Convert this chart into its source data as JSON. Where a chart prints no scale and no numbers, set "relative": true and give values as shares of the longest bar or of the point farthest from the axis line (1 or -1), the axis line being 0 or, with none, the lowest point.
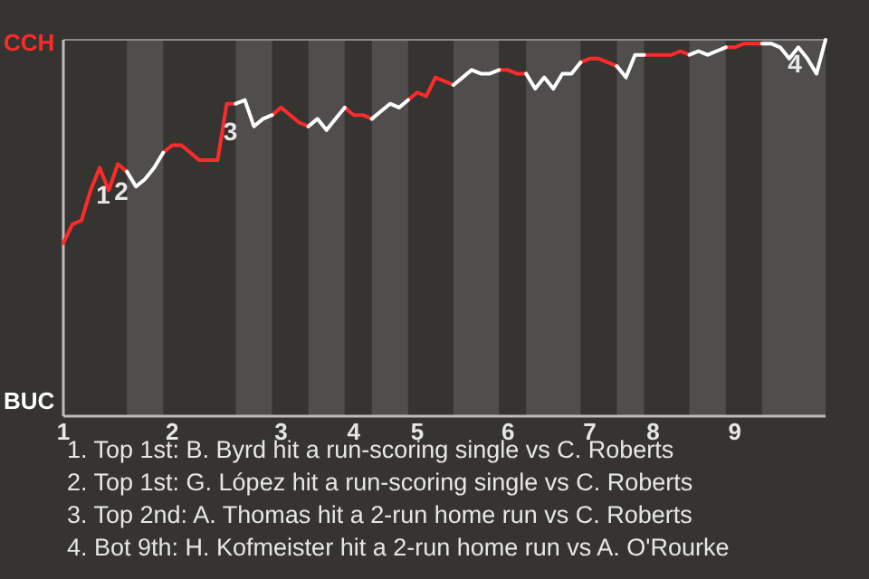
{
  "chart_data": {
    "type": "line",
    "relative": true,
    "categories": [
      "1",
      null,
      null,
      null,
      null,
      null,
      null,
      null,
      null,
      null,
      null,
      null,
      "2",
      null,
      null,
      null,
      null,
      null,
      null,
      null,
      null,
      null,
      null,
      null,
      "3",
      null,
      null,
      null,
      null,
      null,
      null,
      null,
      "4",
      null,
      null,
      null,
      null,
      null,
      null,
      "5",
      null,
      null,
      null,
      null,
      null,
      null,
      null,
      null,
      null,
      "6",
      null,
      null,
      null,
      null,
      null,
      null,
      null,
      null,
      "7",
      null,
      null,
      null,
      null,
      null,
      null,
      "8",
      null,
      null,
      null,
      null,
      null,
      null,
      null,
      null,
      "9",
      null,
      null,
      null,
      null,
      null,
      null,
      null,
      null,
      null,
      null
    ],
    "series": [
      {
        "color": "#ff2a2a",
        "values": [
          0.46,
          0.51,
          0.52,
          0.6,
          0.66,
          0.6,
          0.67,
          0.65,
          null,
          null,
          null,
          0.7,
          0.72,
          0.72,
          0.7,
          0.68,
          0.68,
          0.68,
          0.83,
          0.83,
          null,
          null,
          null,
          0.8,
          0.82,
          0.8,
          0.78,
          0.77,
          null,
          null,
          null,
          0.82,
          0.8,
          0.8,
          0.79,
          null,
          null,
          null,
          0.84,
          0.86,
          0.85,
          0.9,
          0.89,
          0.88,
          null,
          null,
          null,
          null,
          0.92,
          0.92,
          0.91,
          0.91,
          null,
          null,
          null,
          null,
          null,
          0.94,
          0.95,
          0.95,
          0.94,
          0.93,
          null,
          null,
          0.96,
          0.96,
          0.96,
          0.96,
          0.97,
          0.96,
          null,
          null,
          null,
          0.98,
          0.98,
          0.99,
          0.99,
          0.99,
          null,
          null,
          null,
          null,
          null,
          null,
          null
        ]
      },
      {
        "color": "#ffffff",
        "values": [
          null,
          null,
          null,
          null,
          null,
          null,
          null,
          0.65,
          0.61,
          0.63,
          0.66,
          0.7,
          null,
          null,
          null,
          null,
          null,
          null,
          null,
          0.83,
          0.84,
          0.77,
          0.79,
          0.8,
          null,
          null,
          null,
          0.77,
          0.79,
          0.76,
          0.79,
          0.82,
          null,
          null,
          0.79,
          0.81,
          0.83,
          0.82,
          0.84,
          null,
          null,
          null,
          null,
          0.88,
          0.9,
          0.92,
          0.91,
          0.91,
          0.92,
          null,
          null,
          0.91,
          0.87,
          0.9,
          0.87,
          0.91,
          0.91,
          0.94,
          null,
          null,
          null,
          0.93,
          0.9,
          0.96,
          0.96,
          null,
          null,
          null,
          null,
          0.96,
          0.97,
          0.96,
          0.97,
          0.98,
          null,
          null,
          null,
          0.99,
          0.99,
          0.98,
          0.95,
          0.98,
          0.95,
          0.91,
          1
        ]
      }
    ],
    "annotations": [
      "CCH",
      "BUC",
      {
        "text": "1",
        "y": 0.66
      },
      {
        "text": "2",
        "y": 0.67
      },
      {
        "text": "3",
        "y": 0.83
      },
      {
        "text": "4",
        "y": 1
      },
      "1. Top 1st: B. Byrd hit a run-scoring single vs C. Roberts",
      "2. Top 1st: G. López hit a run-scoring single vs C. Roberts",
      "3. Top 2nd: A. Thomas hit a 2-run home run vs C. Roberts",
      "4. Bot 9th: H. Kofmeister hit a 2-run home run vs A. O'Rourke"
    ]
  }
}
